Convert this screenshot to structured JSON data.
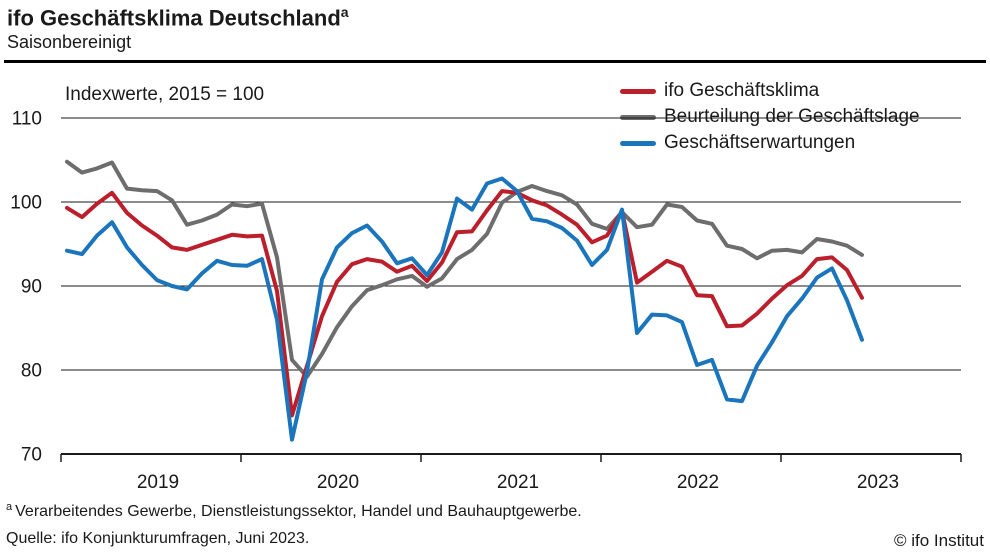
{
  "header": {
    "title": "ifo Geschäftsklima Deutschland",
    "title_superscript": "a",
    "subtitle": "Saisonbereinigt"
  },
  "chart_data": {
    "type": "line",
    "note": "Indexwerte, 2015 = 100",
    "period": "monthly, Jan 2019 - Jun 2023",
    "ylim": [
      70,
      110
    ],
    "yticks": [
      70,
      80,
      90,
      100,
      110
    ],
    "x_year_ticks": [
      "2019",
      "2020",
      "2021",
      "2022",
      "2023"
    ],
    "grid": "horizontal",
    "legend_position": "top-right",
    "series": [
      {
        "name": "ifo Geschäftsklima",
        "color": "#bc1f2c",
        "z": 2,
        "values": [
          99.3,
          98.2,
          99.8,
          101.1,
          98.7,
          97.2,
          96.0,
          94.6,
          94.3,
          94.9,
          95.5,
          96.1,
          95.9,
          96.0,
          89.4,
          74.6,
          80.5,
          86.4,
          90.5,
          92.6,
          93.2,
          92.9,
          91.7,
          92.4,
          90.6,
          92.8,
          96.4,
          96.5,
          99.0,
          101.3,
          101.1,
          100.2,
          99.6,
          98.5,
          97.3,
          95.2,
          96.0,
          98.9,
          90.4,
          91.7,
          93.0,
          92.3,
          88.9,
          88.8,
          85.2,
          85.3,
          86.7,
          88.5,
          90.1,
          91.2,
          93.2,
          93.4,
          91.9,
          88.6
        ]
      },
      {
        "name": "Beurteilung der Geschäftslage",
        "color": "#6d6d6d",
        "z": 1,
        "values": [
          104.8,
          103.5,
          104.0,
          104.7,
          101.6,
          101.4,
          101.3,
          100.2,
          97.3,
          97.8,
          98.5,
          99.7,
          99.5,
          99.8,
          93.4,
          81.2,
          79.2,
          81.9,
          85.1,
          87.6,
          89.5,
          90.1,
          90.8,
          91.2,
          89.9,
          90.9,
          93.2,
          94.3,
          96.2,
          99.9,
          101.2,
          101.9,
          101.3,
          100.8,
          99.7,
          97.4,
          96.8,
          98.8,
          97.0,
          97.3,
          99.7,
          99.4,
          97.8,
          97.4,
          94.8,
          94.4,
          93.3,
          94.2,
          94.3,
          94.0,
          95.6,
          95.3,
          94.8,
          93.7
        ]
      },
      {
        "name": "Geschäftserwartungen",
        "color": "#1b75bc",
        "z": 3,
        "values": [
          94.2,
          93.8,
          96.0,
          97.6,
          94.6,
          92.5,
          90.7,
          90.0,
          89.6,
          91.5,
          93.0,
          92.5,
          92.4,
          93.2,
          86.0,
          71.7,
          79.8,
          90.8,
          94.6,
          96.3,
          97.2,
          95.3,
          92.7,
          93.3,
          91.3,
          94.0,
          100.4,
          99.1,
          102.2,
          102.8,
          101.3,
          98.0,
          97.7,
          96.9,
          95.4,
          92.5,
          94.3,
          99.1,
          84.4,
          86.6,
          86.5,
          85.7,
          80.6,
          81.2,
          76.5,
          76.3,
          80.5,
          83.3,
          86.4,
          88.5,
          91.0,
          92.1,
          88.3,
          83.6
        ]
      }
    ]
  },
  "footer": {
    "footnote_marker": "a",
    "footnote_text": "Verarbeitendes Gewerbe, Dienstleistungssektor, Handel und Bauhauptgewerbe.",
    "source": "Quelle: ifo Konjunkturumfragen, Juni 2023.",
    "copyright": "© ifo Institut"
  }
}
